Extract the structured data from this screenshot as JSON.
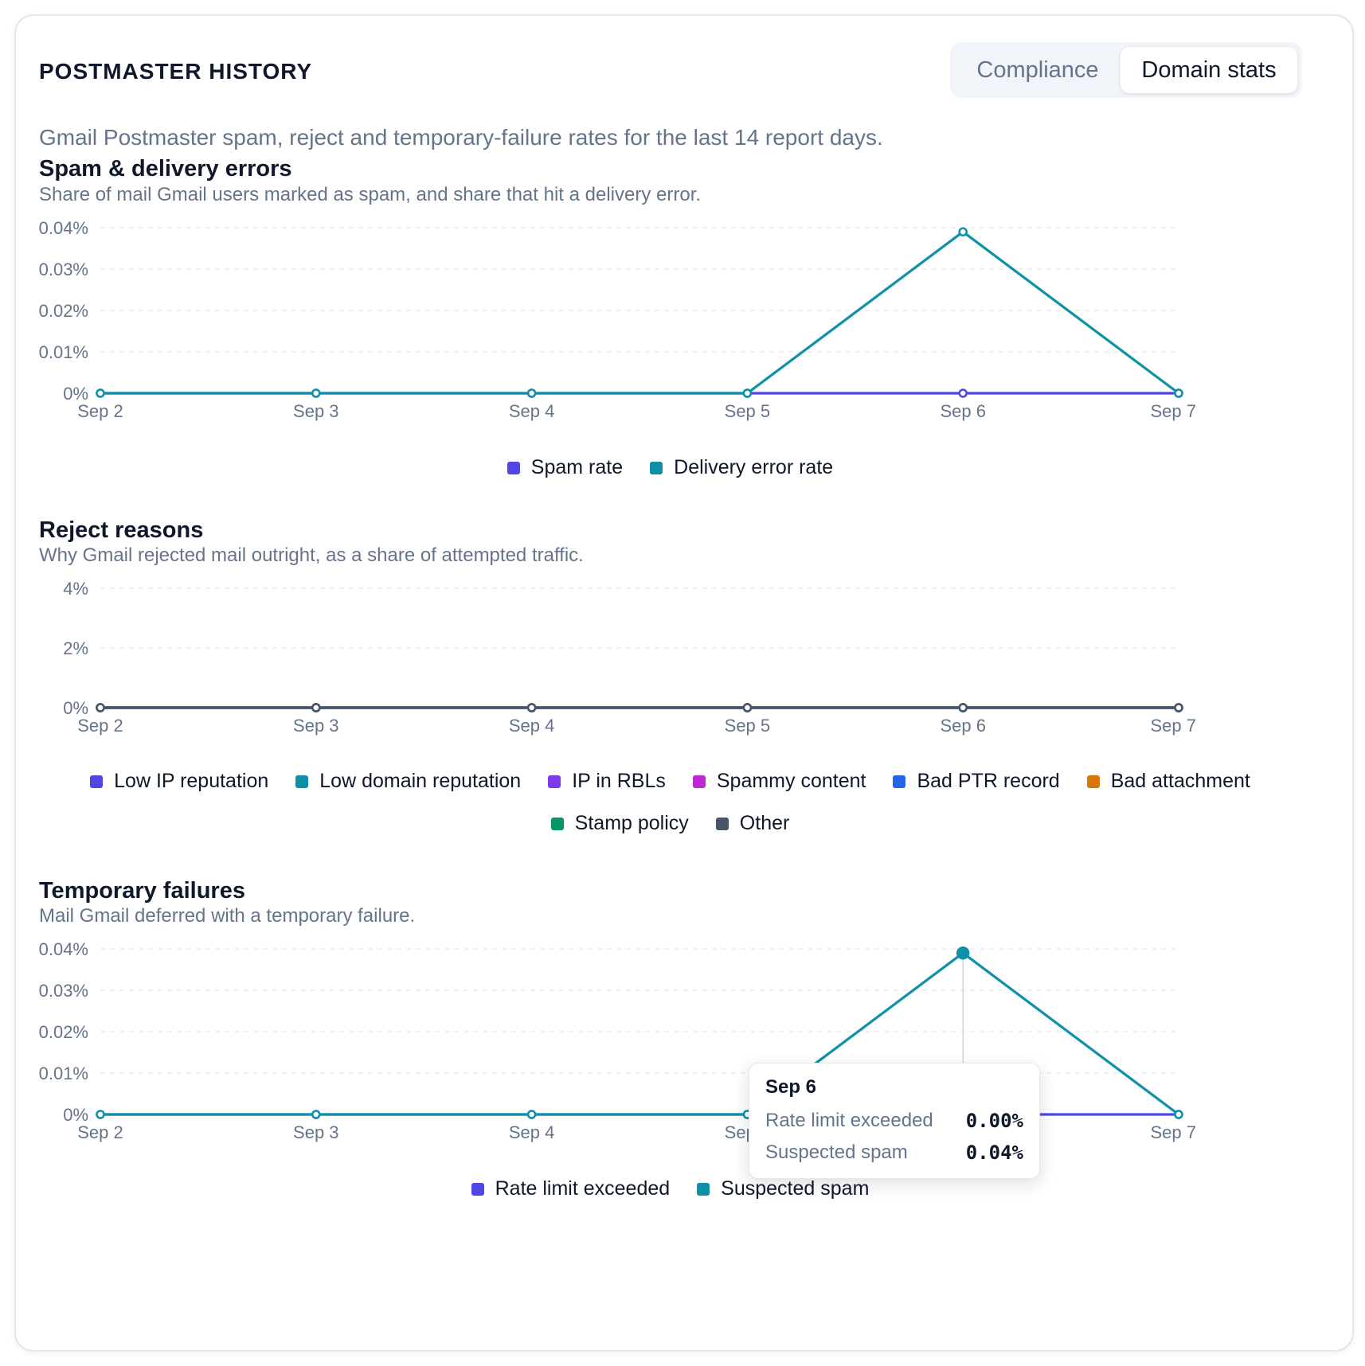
{
  "header": {
    "title": "POSTMASTER HISTORY",
    "tabs": [
      {
        "label": "Compliance",
        "active": false
      },
      {
        "label": "Domain stats",
        "active": true
      }
    ],
    "description": "Gmail Postmaster spam, reject and temporary-failure rates for the last 14 report days."
  },
  "sections": [
    {
      "title": "Spam & delivery errors",
      "subtitle": "Share of mail Gmail users marked as spam, and share that hit a delivery error."
    },
    {
      "title": "Reject reasons",
      "subtitle": "Why Gmail rejected mail outright, as a share of attempted traffic."
    },
    {
      "title": "Temporary failures",
      "subtitle": "Mail Gmail deferred with a temporary failure."
    }
  ],
  "tooltip": {
    "date": "Sep 6",
    "rows": [
      {
        "label": "Rate limit exceeded",
        "value": "0.00%"
      },
      {
        "label": "Suspected spam",
        "value": "0.04%"
      }
    ]
  },
  "chart_data": [
    {
      "type": "line",
      "title": "Spam & delivery errors",
      "x": [
        "Sep 2",
        "Sep 3",
        "Sep 4",
        "Sep 5",
        "Sep 6",
        "Sep 7"
      ],
      "yticks": [
        "0%",
        "0.01%",
        "0.02%",
        "0.03%",
        "0.04%"
      ],
      "ylim": [
        0,
        0.04
      ],
      "grid": true,
      "legend_position": "bottom",
      "series": [
        {
          "name": "Spam rate",
          "color": "#4f46e5",
          "values": [
            0,
            0,
            0,
            0,
            0,
            0
          ]
        },
        {
          "name": "Delivery error rate",
          "color": "#0e90a8",
          "values": [
            0,
            0,
            0,
            0,
            0.039,
            0
          ]
        }
      ]
    },
    {
      "type": "line",
      "title": "Reject reasons",
      "x": [
        "Sep 2",
        "Sep 3",
        "Sep 4",
        "Sep 5",
        "Sep 6",
        "Sep 7"
      ],
      "yticks": [
        "0%",
        "2%",
        "4%"
      ],
      "ylim": [
        0,
        4
      ],
      "grid": true,
      "legend_position": "bottom",
      "series": [
        {
          "name": "Low IP reputation",
          "color": "#4f46e5",
          "values": [
            0,
            0,
            0,
            0,
            0,
            0
          ]
        },
        {
          "name": "Low domain reputation",
          "color": "#0e90a8",
          "values": [
            0,
            0,
            0,
            0,
            0,
            0
          ]
        },
        {
          "name": "IP in RBLs",
          "color": "#7c3aed",
          "values": [
            0,
            0,
            0,
            0,
            0,
            0
          ]
        },
        {
          "name": "Spammy content",
          "color": "#c026d3",
          "values": [
            0,
            0,
            0,
            0,
            0,
            0
          ]
        },
        {
          "name": "Bad PTR record",
          "color": "#2563eb",
          "values": [
            0,
            0,
            0,
            0,
            0,
            0
          ]
        },
        {
          "name": "Bad attachment",
          "color": "#d97706",
          "values": [
            0,
            0,
            0,
            0,
            0,
            0
          ]
        },
        {
          "name": "Stamp policy",
          "color": "#059669",
          "values": [
            0,
            0,
            0,
            0,
            0,
            0
          ]
        },
        {
          "name": "Other",
          "color": "#475569",
          "values": [
            0,
            0,
            0,
            0,
            0,
            0
          ]
        }
      ]
    },
    {
      "type": "line",
      "title": "Temporary failures",
      "x": [
        "Sep 2",
        "Sep 3",
        "Sep 4",
        "Sep 5",
        "Sep 6",
        "Sep 7"
      ],
      "yticks": [
        "0%",
        "0.01%",
        "0.02%",
        "0.03%",
        "0.04%"
      ],
      "ylim": [
        0,
        0.04
      ],
      "grid": true,
      "legend_position": "bottom",
      "highlight_index": 4,
      "series": [
        {
          "name": "Rate limit exceeded",
          "color": "#4f46e5",
          "values": [
            0,
            0,
            0,
            0,
            0,
            0
          ]
        },
        {
          "name": "Suspected spam",
          "color": "#0e90a8",
          "values": [
            0,
            0,
            0,
            0,
            0.039,
            0
          ]
        }
      ]
    }
  ]
}
